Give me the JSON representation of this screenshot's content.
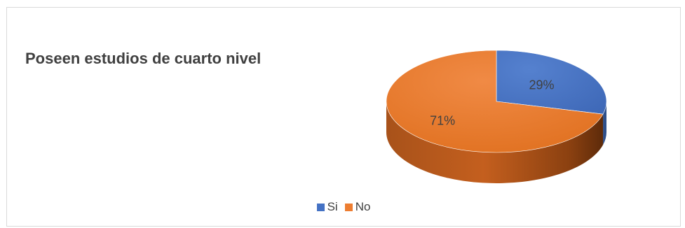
{
  "chart_data": {
    "type": "pie",
    "title": "Poseen estudios de cuarto nivel",
    "style": "3d",
    "slices": [
      {
        "label": "Si",
        "value": 29,
        "display": "29%",
        "color": "#4472c4"
      },
      {
        "label": "No",
        "value": 71,
        "display": "71%",
        "color": "#ed7d31"
      }
    ],
    "legend_position": "bottom"
  }
}
